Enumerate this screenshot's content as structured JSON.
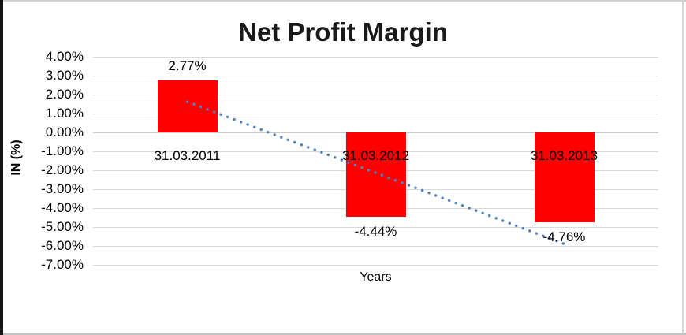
{
  "chart_data": {
    "type": "bar",
    "title": "Net Profit Margin",
    "xlabel": "Years",
    "ylabel": "IN (%)",
    "categories": [
      "31.03.2011",
      "31.03.2012",
      "31.03.2013"
    ],
    "values": [
      2.77,
      -4.44,
      -4.76
    ],
    "value_labels": [
      "2.77%",
      "-4.44%",
      "-4.76%"
    ],
    "yticks": [
      "4.00%",
      "3.00%",
      "2.00%",
      "1.00%",
      "0.00%",
      "-1.00%",
      "-2.00%",
      "-3.00%",
      "-4.00%",
      "-5.00%",
      "-6.00%",
      "-7.00%"
    ],
    "ylim": [
      -7,
      4
    ],
    "grid": true,
    "legend": "none",
    "bar_color": "#FF0000",
    "gridline_color": "#D9D9D9",
    "trendline": {
      "style": "dotted",
      "color": "#4F81BD",
      "start_value": 1.62,
      "end_value": -5.89
    }
  }
}
